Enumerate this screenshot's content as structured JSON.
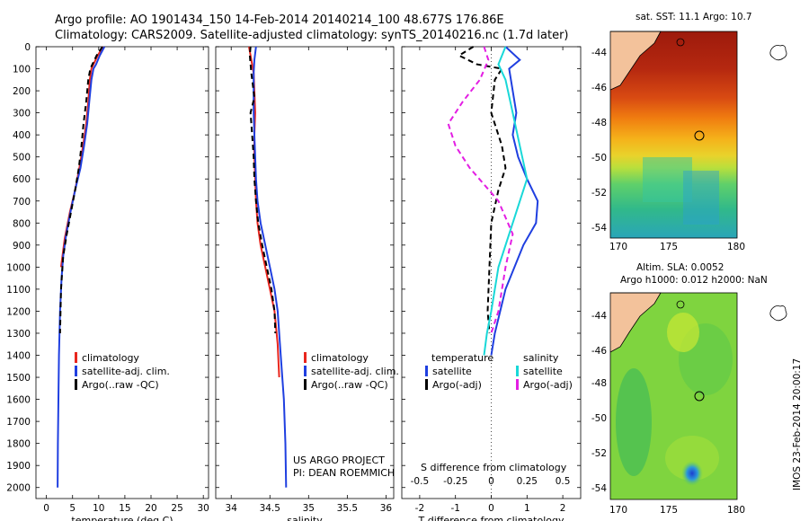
{
  "header": {
    "line1": "Argo profile: AO 1901434_150 14-Feb-2014 20140214_100 48.677S 176.86E",
    "line2": "Climatology: CARS2009. Satellite-adjusted climatology: synTS_20140216.nc (1.7d later)"
  },
  "colors": {
    "climatology": "#e8261e",
    "satellite": "#1f3fe0",
    "argo": "#000000",
    "satellite_salinity": "#19d8d8",
    "argo_salinity": "#e31ee3",
    "land": "#f3c29b"
  },
  "panel1": {
    "legend": [
      "climatology",
      "satellite-adj. clim.",
      "Argo(..raw -QC)"
    ]
  },
  "panel2": {
    "legend": [
      "climatology",
      "satellite-adj. clim.",
      "Argo(..raw -QC)"
    ],
    "credit1": "US ARGO PROJECT",
    "credit2": "PI: DEAN ROEMMICH"
  },
  "panel3": {
    "legend_temp_title": "temperature",
    "legend_sal_title": "salinity",
    "legend_temp": [
      "satellite",
      "Argo(-adj)"
    ],
    "legend_sal": [
      "satellite",
      "Argo(-adj)"
    ],
    "top_axis_label": "S difference from climatology"
  },
  "map1": {
    "title": "sat. SST: 11.1  Argo: 10.7"
  },
  "map2": {
    "title1": "Altim. SLA: 0.0052",
    "title2": "Argo h1000: 0.012 h2000: NaN"
  },
  "footer": {
    "stamp": "IMOS 23-Feb-2014 20:00:17"
  },
  "chart_data": [
    {
      "type": "line",
      "xlabel": "temperature (deg C)",
      "ylabel": "",
      "xlim": [
        -2,
        31
      ],
      "ylim": [
        2050,
        0
      ],
      "xticks": [
        0,
        5,
        10,
        15,
        20,
        25,
        30
      ],
      "yticks": [
        0,
        100,
        200,
        300,
        400,
        500,
        600,
        700,
        800,
        900,
        1000,
        1100,
        1200,
        1300,
        1400,
        1500,
        1600,
        1700,
        1800,
        1900,
        2000
      ],
      "series": [
        {
          "name": "climatology",
          "color": "#e8261e",
          "dash": "",
          "x": [
            10.8,
            9.8,
            9.0,
            8.6,
            8.3,
            8.0,
            7.6,
            7.0,
            6.3,
            5.5,
            4.5,
            3.5,
            2.8
          ],
          "y": [
            0,
            40,
            80,
            100,
            150,
            250,
            350,
            450,
            550,
            650,
            750,
            870,
            1000
          ]
        },
        {
          "name": "satellite-adj. clim.",
          "color": "#1f3fe0",
          "dash": "",
          "x": [
            11.1,
            10.2,
            9.5,
            9.0,
            8.6,
            8.2,
            7.8,
            7.2,
            6.5,
            5.5,
            4.6,
            3.8,
            3.2,
            2.9,
            2.6,
            2.4,
            2.3,
            2.2,
            2.15
          ],
          "y": [
            0,
            40,
            80,
            100,
            150,
            250,
            350,
            450,
            550,
            650,
            750,
            850,
            950,
            1050,
            1200,
            1400,
            1600,
            1800,
            2000
          ]
        },
        {
          "name": "Argo(..raw -QC)",
          "color": "#000000",
          "dash": "6 4",
          "x": [
            10.7,
            9.6,
            8.8,
            8.4,
            8.0,
            7.6,
            7.1,
            6.7,
            6.2,
            5.5,
            4.7,
            3.9,
            3.2,
            2.8,
            2.6
          ],
          "y": [
            0,
            40,
            80,
            100,
            150,
            250,
            350,
            450,
            550,
            650,
            750,
            850,
            950,
            1100,
            1300
          ]
        }
      ]
    },
    {
      "type": "line",
      "xlabel": "salinity",
      "ylabel": "",
      "xlim": [
        33.8,
        36.1
      ],
      "ylim": [
        2050,
        0
      ],
      "xticks": [
        34,
        34.5,
        35,
        35.5,
        36
      ],
      "yticks": [
        0,
        100,
        200,
        300,
        400,
        500,
        600,
        700,
        800,
        900,
        1000,
        1100,
        1200,
        1300,
        1400,
        1500,
        1600,
        1700,
        1800,
        1900,
        2000
      ],
      "series": [
        {
          "name": "climatology",
          "color": "#e8261e",
          "dash": "",
          "x": [
            34.23,
            34.26,
            34.29,
            34.3,
            34.31,
            34.3,
            34.3,
            34.31,
            34.32,
            34.34,
            34.38,
            34.44,
            34.5,
            34.56,
            34.6,
            34.62
          ],
          "y": [
            0,
            60,
            120,
            200,
            300,
            400,
            500,
            600,
            700,
            800,
            900,
            1000,
            1100,
            1200,
            1350,
            1500
          ]
        },
        {
          "name": "satellite-adj. clim.",
          "color": "#1f3fe0",
          "dash": "",
          "x": [
            34.32,
            34.3,
            34.29,
            34.29,
            34.29,
            34.3,
            34.31,
            34.32,
            34.34,
            34.38,
            34.44,
            34.5,
            34.56,
            34.6,
            34.64,
            34.68,
            34.7,
            34.71
          ],
          "y": [
            0,
            60,
            120,
            200,
            300,
            400,
            500,
            600,
            700,
            800,
            900,
            1000,
            1100,
            1200,
            1400,
            1600,
            1800,
            2000
          ]
        },
        {
          "name": "Argo(..raw -QC)",
          "color": "#000000",
          "dash": "6 4",
          "x": [
            34.25,
            34.24,
            34.26,
            34.3,
            34.25,
            34.27,
            34.29,
            34.3,
            34.32,
            34.35,
            34.4,
            34.46,
            34.52,
            34.56,
            34.57
          ],
          "y": [
            0,
            40,
            120,
            230,
            300,
            400,
            500,
            600,
            700,
            800,
            900,
            1000,
            1100,
            1200,
            1300
          ]
        }
      ]
    },
    {
      "type": "line",
      "xlabel": "T difference from climatology",
      "ylabel": "",
      "xlim": [
        -2.5,
        2.5
      ],
      "ylim": [
        2050,
        0
      ],
      "xticks": [
        -2,
        -1,
        0,
        1,
        2
      ],
      "top_xlim": [
        -0.625,
        0.625
      ],
      "top_xticks": [
        -0.5,
        -0.25,
        0,
        0.25,
        0.5
      ],
      "top_xlabel": "S difference from climatology",
      "yticks": [
        0,
        100,
        200,
        300,
        400,
        500,
        600,
        700,
        800,
        900,
        1000,
        1100,
        1200,
        1300,
        1400,
        1500,
        1600,
        1700,
        1800,
        1900,
        2000
      ],
      "series": [
        {
          "name": "temperature satellite",
          "color": "#1f3fe0",
          "dash": "",
          "x": [
            0.4,
            0.8,
            0.5,
            0.6,
            0.7,
            0.6,
            0.75,
            1.0,
            1.3,
            1.25,
            0.9,
            0.4,
            0.1,
            0.0
          ],
          "y": [
            0,
            60,
            100,
            200,
            300,
            400,
            500,
            600,
            700,
            800,
            900,
            1100,
            1300,
            1400
          ]
        },
        {
          "name": "temperature Argo(-adj)",
          "color": "#000000",
          "dash": "6 4",
          "x": [
            -0.5,
            -0.9,
            -0.4,
            0.3,
            0.1,
            0.0,
            0.3,
            0.4,
            0.2,
            0.0,
            -0.05,
            -0.1,
            -0.05
          ],
          "y": [
            0,
            40,
            80,
            100,
            150,
            300,
            450,
            550,
            650,
            800,
            1000,
            1200,
            1300
          ]
        },
        {
          "name": "salinity satellite",
          "color": "#19d8d8",
          "dash": "",
          "x": [
            0.1,
            0.05,
            0.1,
            0.15,
            0.2,
            0.25,
            0.15,
            0.05,
            0.0,
            -0.03,
            -0.05
          ],
          "y": [
            0,
            80,
            150,
            300,
            450,
            600,
            800,
            1000,
            1200,
            1300,
            1400
          ]
        },
        {
          "name": "salinity Argo(-adj)",
          "color": "#e31ee3",
          "dash": "6 4",
          "x": [
            -0.05,
            -0.02,
            -0.08,
            -0.2,
            -0.3,
            -0.25,
            -0.15,
            0.05,
            0.15,
            0.1,
            0.05,
            0.0
          ],
          "y": [
            0,
            60,
            150,
            250,
            350,
            450,
            550,
            700,
            850,
            1000,
            1200,
            1300
          ]
        }
      ]
    }
  ]
}
